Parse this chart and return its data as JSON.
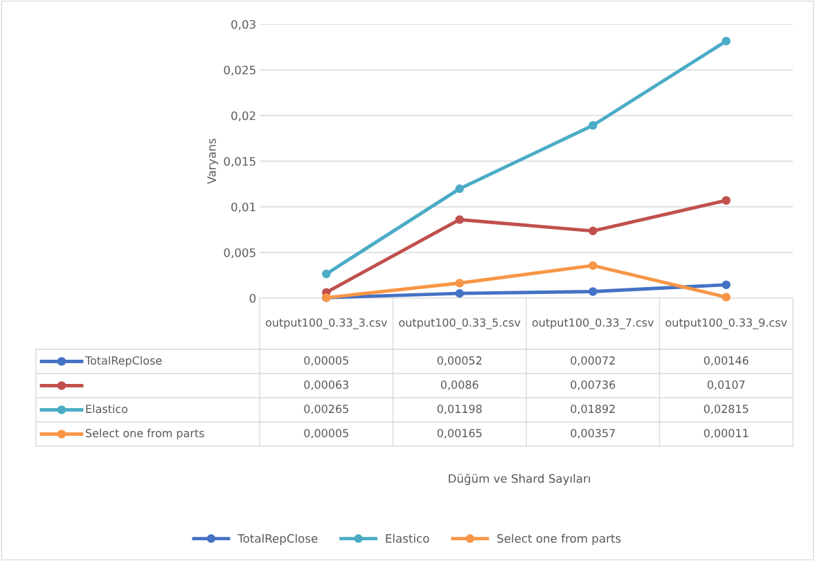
{
  "chart_data": {
    "type": "line",
    "ylabel": "Varyans",
    "annotations": [
      "Düğüm ve Shard Sayıları"
    ],
    "categories": [
      "output100_0.33_3.csv",
      "output100_0.33_5.csv",
      "output100_0.33_7.csv",
      "output100_0.33_9.csv"
    ],
    "series": [
      {
        "name": "TotalRepClose",
        "color": "#4472c4",
        "values": [
          5e-05,
          0.00052,
          0.00072,
          0.00146
        ],
        "value_labels": [
          "0,00005",
          "0,00052",
          "0,00072",
          "0,00146"
        ]
      },
      {
        "color": "#c0504d",
        "values": [
          0.00063,
          0.0086,
          0.00736,
          0.0107
        ],
        "value_labels": [
          "0,00063",
          "0,0086",
          "0,00736",
          "0,0107"
        ]
      },
      {
        "name": "Elastico",
        "color": "#4bacc6",
        "values": [
          0.00265,
          0.01198,
          0.01892,
          0.02815
        ],
        "value_labels": [
          "0,00265",
          "0,01198",
          "0,01892",
          "0,02815"
        ]
      },
      {
        "name": "Select one from parts",
        "color": "#f79646",
        "values": [
          5e-05,
          0.00165,
          0.00357,
          0.00011
        ],
        "value_labels": [
          "0,00005",
          "0,00165",
          "0,00357",
          "0,00011"
        ]
      }
    ],
    "ylim": [
      0,
      0.03
    ],
    "yticks": [
      {
        "value": 0,
        "label": "0"
      },
      {
        "value": 0.005,
        "label": "0,005"
      },
      {
        "value": 0.01,
        "label": "0,01"
      },
      {
        "value": 0.015,
        "label": "0,015"
      },
      {
        "value": 0.02,
        "label": "0,02"
      },
      {
        "value": 0.025,
        "label": "0,025"
      },
      {
        "value": 0.03,
        "label": "0,03"
      }
    ],
    "grid": "y",
    "marker": "circle",
    "line_style": "solid",
    "legend": "bottom"
  }
}
